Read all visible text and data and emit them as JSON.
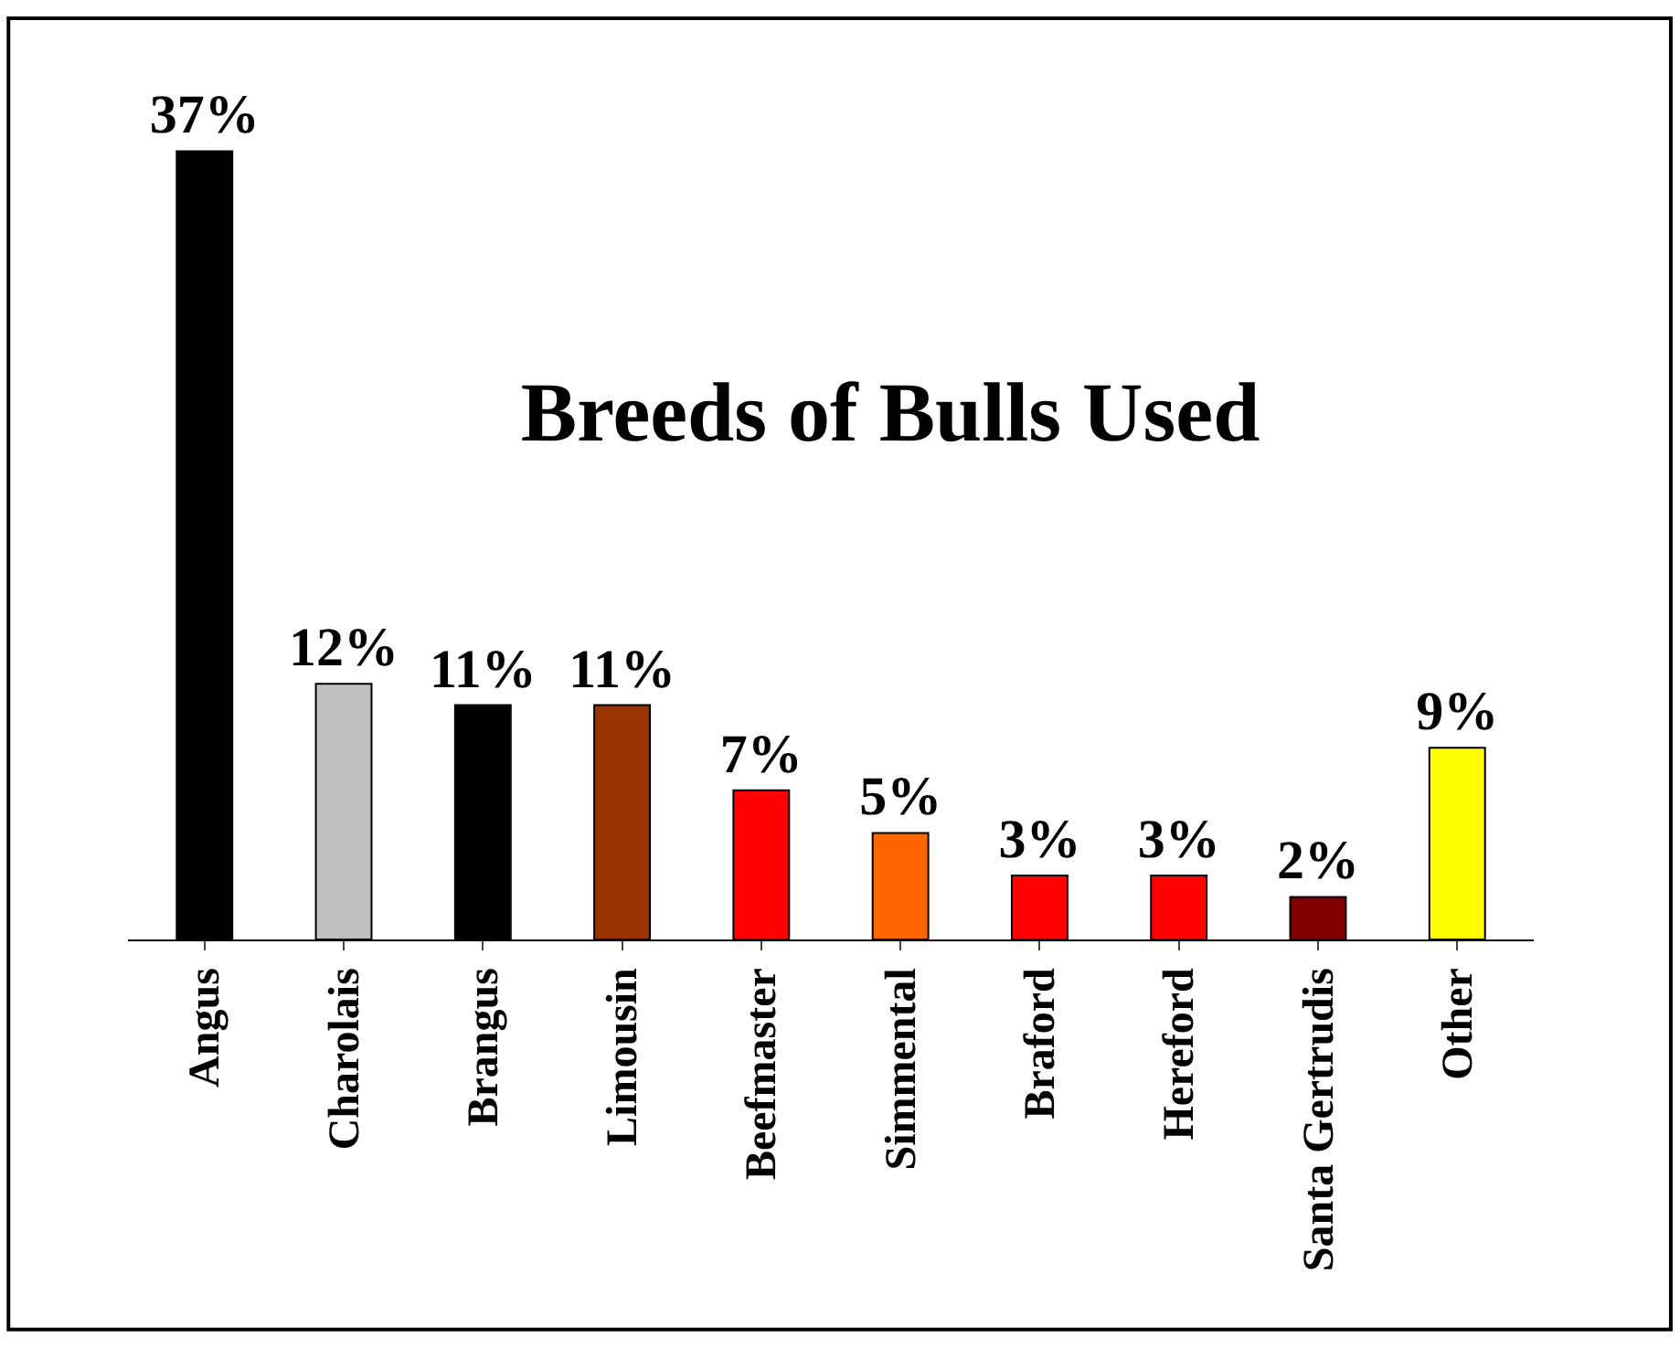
{
  "chart_data": {
    "type": "bar",
    "title": "Breeds of Bulls Used",
    "categories": [
      "Angus",
      "Charolais",
      "Brangus",
      "Limousin",
      "Beefmaster",
      "Simmental",
      "Braford",
      "Hereford",
      "Santa Gertrudis",
      "Other"
    ],
    "values": [
      37,
      12,
      11,
      11,
      7,
      5,
      3,
      3,
      2,
      9
    ],
    "value_labels": [
      "37%",
      "12%",
      "11%",
      "11%",
      "7%",
      "5%",
      "3%",
      "3%",
      "2%",
      "9%"
    ],
    "colors": [
      "#000000",
      "#c0c0c0",
      "#000000",
      "#993300",
      "#ff0000",
      "#ff6600",
      "#ff0000",
      "#ff0000",
      "#800000",
      "#ffff00"
    ],
    "tick_labels": "x"
  }
}
